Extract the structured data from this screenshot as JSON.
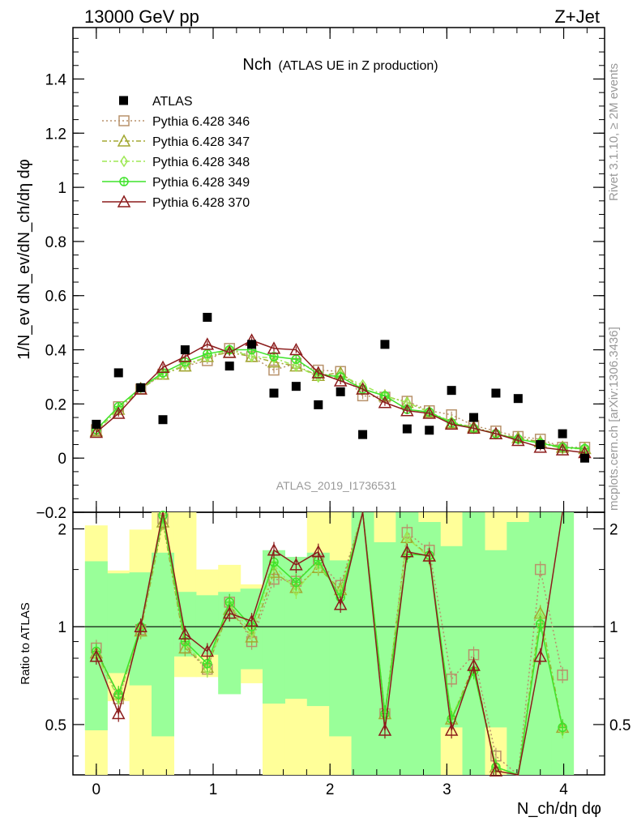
{
  "header": {
    "left": "13000 GeV pp",
    "right": "Z+Jet"
  },
  "side_text": {
    "rivet": "Rivet 3.1.10, ≥ 2M events",
    "mcplots": "mcplots.cern.ch [arXiv:1306.3436]"
  },
  "watermark": "ATLAS_2019_I1736531",
  "chart_data": {
    "type": "scatter",
    "title": "Nch",
    "subtitle": "(ATLAS UE in Z production)",
    "xlabel": "N_ch/dη dφ",
    "ylabel": "1/N_ev dN_ev/dN_ch/dη dφ",
    "ratio_ylabel": "Ratio to ATLAS",
    "xlim": [
      -0.2,
      4.35
    ],
    "ylim": [
      -0.2,
      1.59
    ],
    "ratio_ylim": [
      0.35,
      2.25
    ],
    "x_ticks": [
      "0",
      "1",
      "2",
      "3",
      "4"
    ],
    "y_ticks": [
      "-0.2",
      "0",
      "0.2",
      "0.4",
      "0.6",
      "0.8",
      "1",
      "1.2",
      "1.4"
    ],
    "ratio_ticks": [
      "0.5",
      "1",
      "2"
    ],
    "x": [
      0.0,
      0.19,
      0.38,
      0.57,
      0.76,
      0.95,
      1.14,
      1.33,
      1.52,
      1.71,
      1.9,
      2.09,
      2.28,
      2.47,
      2.66,
      2.85,
      3.04,
      3.23,
      3.42,
      3.61,
      3.8,
      3.99,
      4.18
    ],
    "data": {
      "name": "ATLAS",
      "values": [
        0.125,
        0.315,
        0.26,
        0.142,
        0.4,
        0.52,
        0.34,
        0.42,
        0.24,
        0.265,
        0.197,
        0.245,
        0.087,
        0.42,
        0.108,
        0.103,
        0.25,
        0.15,
        0.24,
        0.22,
        0.05,
        0.09,
        0.0
      ]
    },
    "series": [
      {
        "name": "Pythia 6.428 346",
        "color": "#b8926b",
        "marker": "square",
        "dash": "2,3",
        "values": [
          0.105,
          0.19,
          0.255,
          0.31,
          0.34,
          0.36,
          0.405,
          0.375,
          0.325,
          0.35,
          0.325,
          0.32,
          0.23,
          0.225,
          0.21,
          0.175,
          0.16,
          0.12,
          0.1,
          0.08,
          0.07,
          0.04,
          0.04
        ]
      },
      {
        "name": "Pythia 6.428 347",
        "color": "#a3a832",
        "marker": "triangle",
        "dash": "6,3,2,3",
        "values": [
          0.1,
          0.18,
          0.255,
          0.31,
          0.34,
          0.375,
          0.39,
          0.375,
          0.355,
          0.34,
          0.305,
          0.315,
          0.255,
          0.23,
          0.205,
          0.17,
          0.13,
          0.115,
          0.09,
          0.075,
          0.06,
          0.04,
          0.035
        ]
      },
      {
        "name": "Pythia 6.428 348",
        "color": "#9ee854",
        "marker": "diamond",
        "dash": "6,3,2,3",
        "values": [
          0.1,
          0.18,
          0.26,
          0.31,
          0.345,
          0.375,
          0.4,
          0.375,
          0.37,
          0.34,
          0.3,
          0.305,
          0.27,
          0.23,
          0.205,
          0.17,
          0.135,
          0.11,
          0.09,
          0.07,
          0.055,
          0.035,
          0.035
        ]
      },
      {
        "name": "Pythia 6.428 349",
        "color": "#3fe32a",
        "marker": "circle-cross",
        "dash": "",
        "values": [
          0.105,
          0.19,
          0.26,
          0.315,
          0.355,
          0.385,
          0.4,
          0.4,
          0.375,
          0.365,
          0.31,
          0.3,
          0.255,
          0.23,
          0.18,
          0.17,
          0.13,
          0.11,
          0.09,
          0.07,
          0.055,
          0.04,
          0.035
        ]
      },
      {
        "name": "Pythia 6.428 370",
        "color": "#8c1c1c",
        "marker": "triangle",
        "dash": "",
        "values": [
          0.095,
          0.165,
          0.255,
          0.335,
          0.375,
          0.42,
          0.39,
          0.435,
          0.405,
          0.4,
          0.315,
          0.285,
          0.255,
          0.205,
          0.175,
          0.165,
          0.125,
          0.11,
          0.09,
          0.065,
          0.04,
          0.03,
          0.02
        ]
      }
    ],
    "ratio_series": [
      [
        0.86,
        0.6,
        0.98,
        2.15,
        0.86,
        0.74,
        1.19,
        0.9,
        1.4,
        1.38,
        1.6,
        1.34,
        2.65,
        0.54,
        1.95,
        1.72,
        0.69,
        0.82,
        0.4,
        0.33,
        1.5,
        0.71,
        null
      ],
      [
        0.83,
        0.62,
        0.97,
        2.1,
        0.86,
        0.75,
        1.13,
        0.93,
        1.47,
        1.32,
        1.52,
        1.3,
        2.9,
        0.54,
        1.88,
        1.65,
        0.52,
        0.76,
        0.37,
        0.33,
        1.1,
        0.49,
        null
      ],
      [
        0.82,
        0.6,
        0.99,
        2.15,
        0.89,
        0.74,
        1.17,
        0.96,
        1.55,
        1.29,
        1.55,
        1.27,
        3.0,
        0.54,
        1.88,
        1.63,
        0.53,
        0.73,
        0.37,
        0.32,
        1.07,
        0.48,
        null
      ],
      [
        0.84,
        0.62,
        1.0,
        2.2,
        0.9,
        0.77,
        1.19,
        1.0,
        1.58,
        1.37,
        1.6,
        1.23,
        2.95,
        0.54,
        1.67,
        1.66,
        0.52,
        0.73,
        0.37,
        0.32,
        1.02,
        0.49,
        null
      ],
      [
        0.81,
        0.54,
        1.0,
        2.3,
        0.95,
        0.84,
        1.1,
        1.04,
        1.72,
        1.55,
        1.7,
        1.17,
        2.95,
        0.48,
        1.7,
        1.65,
        0.48,
        0.76,
        0.36,
        0.32,
        0.81,
        2.3,
        null
      ]
    ],
    "uncertainty_bands": {
      "stat_syst_color": "#ffff99",
      "stat_color": "#99ff99",
      "yellow_lo": [
        0.35,
        0.59,
        0.35,
        0.35,
        0.7,
        0.7,
        0.68,
        0.67,
        0.35,
        0.35,
        0.35,
        0.35,
        0.35,
        0.65,
        0.35,
        0.35,
        0.35,
        0.35,
        0.35,
        0.35,
        0.35,
        0.35
      ],
      "yellow_hi": [
        2.05,
        1.49,
        1.99,
        2.3,
        2.3,
        1.5,
        1.55,
        1.35,
        1.55,
        1.55,
        2.3,
        2.3,
        2.3,
        2.3,
        2.3,
        2.3,
        2.3,
        2.3,
        2.3,
        2.3,
        2.3,
        2.3
      ],
      "green_lo": [
        0.48,
        0.72,
        0.66,
        0.46,
        0.81,
        0.82,
        0.62,
        0.74,
        0.58,
        0.6,
        0.57,
        0.46,
        0.35,
        0.35,
        0.35,
        0.35,
        0.49,
        0.35,
        0.49,
        0.35,
        0.35,
        0.35
      ],
      "green_hi": [
        1.59,
        1.46,
        1.47,
        1.69,
        1.28,
        1.25,
        1.28,
        1.31,
        1.72,
        1.64,
        1.69,
        1.6,
        2.3,
        1.82,
        2.3,
        2.1,
        1.77,
        2.3,
        1.72,
        2.1,
        2.3,
        2.3
      ]
    }
  }
}
